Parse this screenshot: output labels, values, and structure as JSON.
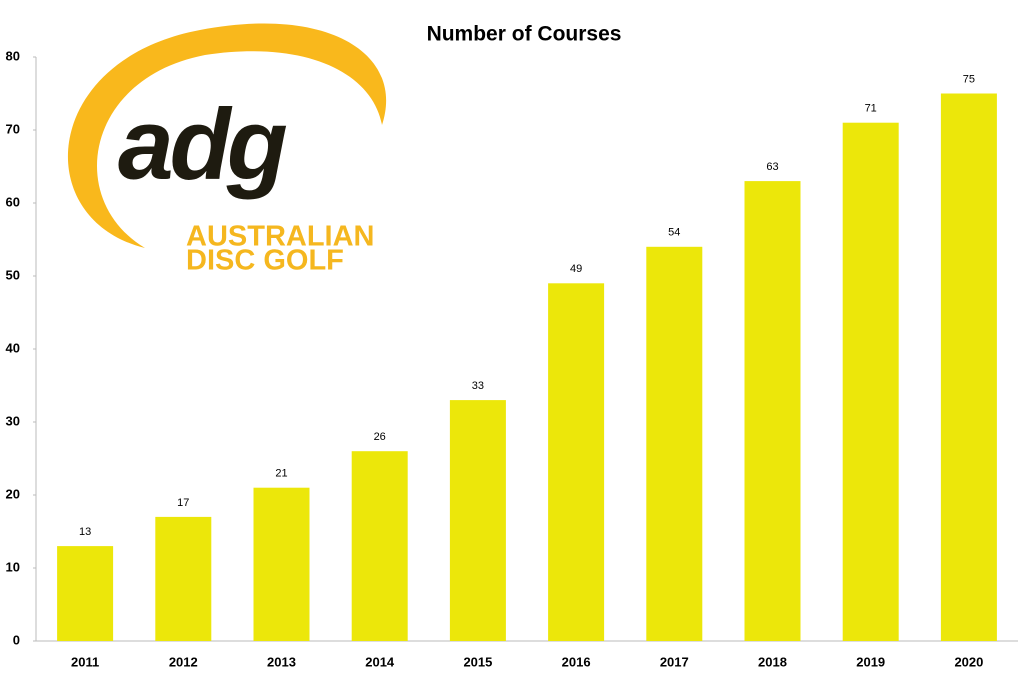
{
  "chart_data": {
    "type": "bar",
    "title": "Number of Courses",
    "categories": [
      "2011",
      "2012",
      "2013",
      "2014",
      "2015",
      "2016",
      "2017",
      "2018",
      "2019",
      "2020"
    ],
    "values": [
      13,
      17,
      21,
      26,
      33,
      49,
      54,
      63,
      71,
      75
    ],
    "color": "#ece70a",
    "ylim": [
      0,
      80
    ],
    "yticks": [
      0,
      10,
      20,
      30,
      40,
      50,
      60,
      70,
      80
    ],
    "grid": false,
    "logo": {
      "mark": "adg",
      "lines": [
        "AUSTRALIAN",
        "DISC GOLF"
      ]
    }
  }
}
